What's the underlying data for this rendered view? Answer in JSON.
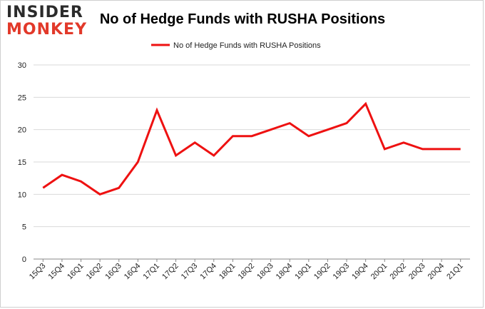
{
  "logo": {
    "line1": "INSIDER",
    "line2": "MONKEY"
  },
  "colors": {
    "series": "#ee1111",
    "grid": "#d9d9d9",
    "axis": "#888888",
    "logo_red": "#e2392a"
  },
  "chart_data": {
    "type": "line",
    "title": "No of Hedge Funds with RUSHA Positions",
    "xlabel": "",
    "ylabel": "",
    "ylim": [
      0,
      30
    ],
    "yticks": [
      0,
      5,
      10,
      15,
      20,
      25,
      30
    ],
    "grid": true,
    "legend_position": "top-center",
    "categories": [
      "15Q3",
      "15Q4",
      "16Q1",
      "16Q2",
      "16Q3",
      "16Q4",
      "17Q1",
      "17Q2",
      "17Q3",
      "17Q4",
      "18Q1",
      "18Q2",
      "18Q3",
      "18Q4",
      "19Q1",
      "19Q2",
      "19Q3",
      "19Q4",
      "20Q1",
      "20Q2",
      "20Q3",
      "20Q4",
      "21Q1"
    ],
    "series": [
      {
        "name": "No of Hedge Funds with RUSHA  Positions",
        "values": [
          11,
          13,
          12,
          10,
          11,
          15,
          23,
          16,
          18,
          16,
          19,
          19,
          20,
          21,
          19,
          20,
          21,
          24,
          17,
          18,
          17,
          17,
          17
        ]
      }
    ]
  }
}
